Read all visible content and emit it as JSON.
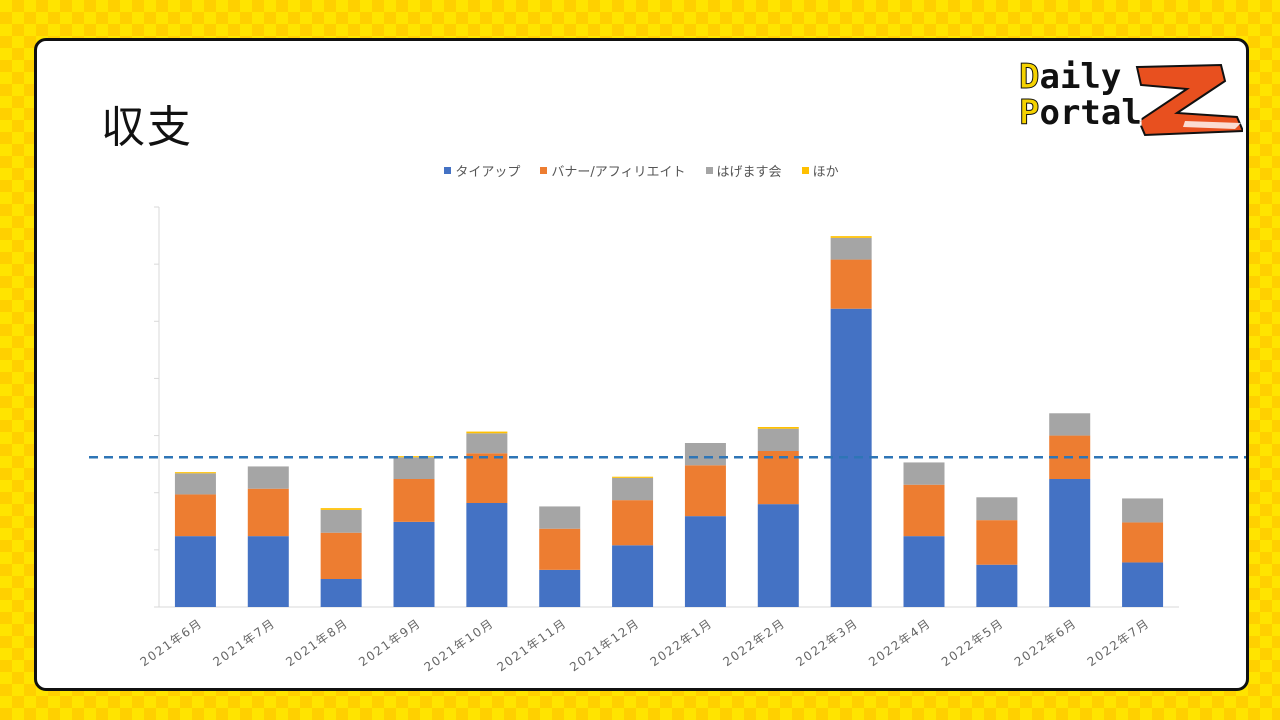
{
  "slide": {
    "title": "収支"
  },
  "logo": {
    "line1_cap": "D",
    "line1_rest": "aily",
    "line2_cap": "P",
    "line2_rest": "ortal"
  },
  "colors": {
    "tieup": "#4472c4",
    "banner": "#ed7d31",
    "hagemasu": "#a5a5a5",
    "other": "#ffc000",
    "reference_line": "#2e75b6",
    "axis": "#d9d9d9"
  },
  "chart_data": {
    "type": "bar",
    "stacked": true,
    "categories": [
      "2021年6月",
      "2021年7月",
      "2021年8月",
      "2021年9月",
      "2021年10月",
      "2021年11月",
      "2021年12月",
      "2022年1月",
      "2022年2月",
      "2022年3月",
      "2022年4月",
      "2022年5月",
      "2022年6月",
      "2022年7月"
    ],
    "series": [
      {
        "name": "タイアップ",
        "values": [
          1.24,
          1.24,
          0.49,
          1.49,
          1.82,
          0.65,
          1.08,
          1.59,
          1.8,
          5.22,
          1.24,
          0.74,
          2.24,
          0.78
        ]
      },
      {
        "name": "バナー/アフィリエイト",
        "values": [
          0.73,
          0.83,
          0.81,
          0.75,
          0.87,
          0.72,
          0.79,
          0.89,
          0.93,
          0.86,
          0.9,
          0.78,
          0.76,
          0.7
        ]
      },
      {
        "name": "はげます会",
        "values": [
          0.37,
          0.39,
          0.4,
          0.38,
          0.35,
          0.39,
          0.39,
          0.39,
          0.39,
          0.38,
          0.39,
          0.4,
          0.39,
          0.42
        ]
      },
      {
        "name": "ほか",
        "values": [
          0.02,
          0.0,
          0.03,
          0.02,
          0.03,
          0.0,
          0.02,
          0.0,
          0.03,
          0.03,
          0.0,
          0.0,
          0.0,
          0.0
        ]
      }
    ],
    "ylim": [
      0,
      7
    ],
    "yticks": [
      0,
      1,
      2,
      3,
      4,
      5,
      6,
      7
    ],
    "ytick_labels_shown": false,
    "reference_line": 2.62,
    "legend": "top-center",
    "grid": false
  }
}
